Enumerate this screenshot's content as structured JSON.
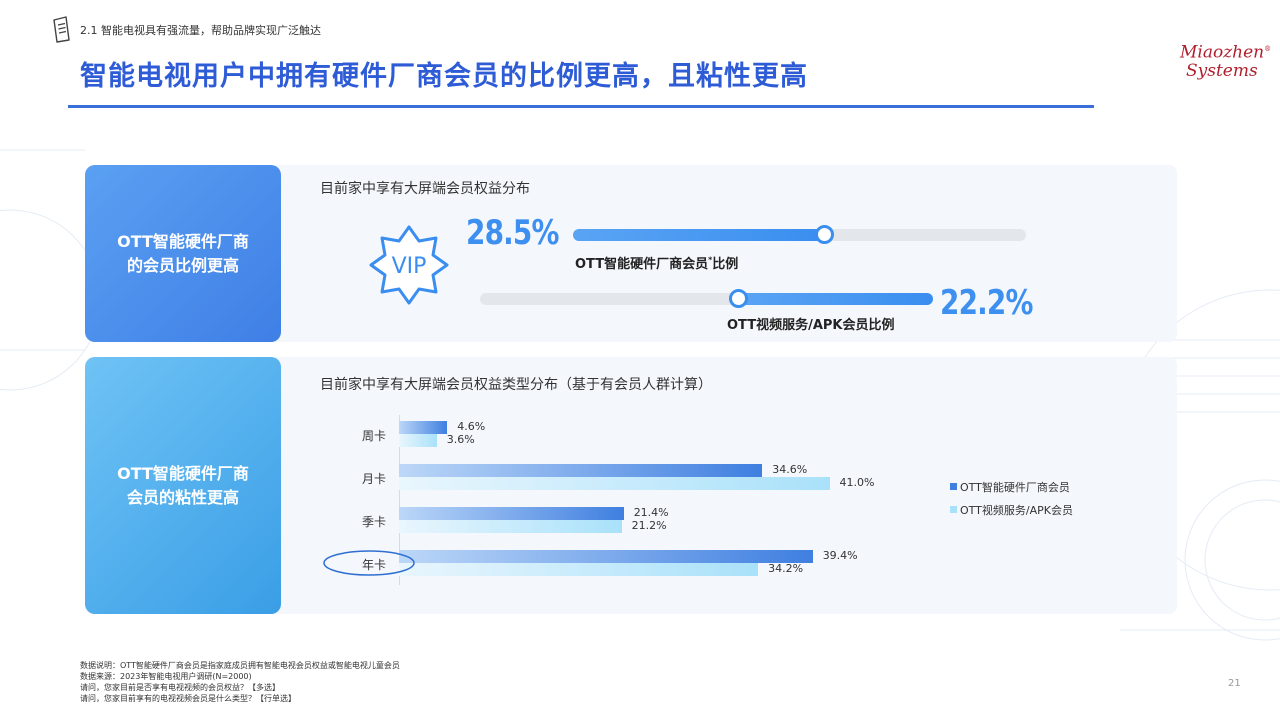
{
  "header": {
    "section_label": "2.1 智能电视具有强流量，帮助品牌实现广泛触达",
    "title": "智能电视用户中拥有硬件厂商会员的比例更高，且粘性更高"
  },
  "logo": {
    "line1": "Miaozhen",
    "line2": "Systems",
    "reg": "®"
  },
  "panel_top": {
    "side_label": [
      "OTT智能硬件厂商",
      "的会员比例更高"
    ],
    "subtitle": "目前家中享有大屏端会员权益分布",
    "vip_text": "VIP",
    "metrics": [
      {
        "value_text": "28.5%",
        "value": 0.285,
        "caption": "OTT智能硬件厂商会员",
        "caption_mark": "*",
        "caption_tail": "比例"
      },
      {
        "value_text": "22.2%",
        "value": 0.222,
        "caption": "OTT视频服务/APK会员比例"
      }
    ]
  },
  "panel_bottom": {
    "side_label": [
      "OTT智能硬件厂商",
      "会员的粘性更高"
    ],
    "subtitle": "目前家中享有大屏端会员权益类型分布（基于有会员人群计算）"
  },
  "chart_data": {
    "type": "bar",
    "orientation": "horizontal",
    "categories": [
      "周卡",
      "月卡",
      "季卡",
      "年卡"
    ],
    "highlighted_category": "年卡",
    "series": [
      {
        "name": "OTT智能硬件厂商会员",
        "values": [
          4.6,
          34.6,
          21.4,
          39.4
        ],
        "labels": [
          "4.6%",
          "34.6%",
          "21.4%",
          "39.4%"
        ],
        "color": "#3f7fe0"
      },
      {
        "name": "OTT视频服务/APK会员",
        "values": [
          3.6,
          41.0,
          21.2,
          34.2
        ],
        "labels": [
          "3.6%",
          "41.0%",
          "21.2%",
          "34.2%"
        ],
        "color": "#a9e1fa"
      }
    ],
    "legend_position": "right",
    "grid": false
  },
  "footnotes": [
    "数据说明：OTT智能硬件厂商会员是指家庭成员拥有智能电视会员权益或智能电视儿童会员",
    "数据来源：2023年智能电视用户调研(N=2000)",
    "请问，您家目前是否享有电视视频的会员权益？【多选】",
    "请问，您家目前享有的电视视频会员是什么类型？【行单选】"
  ],
  "page_number": "21",
  "colors": {
    "accent": "#2e5bd6",
    "bar_blue": "#3a8ef0",
    "logo_red": "#b01e2d"
  }
}
